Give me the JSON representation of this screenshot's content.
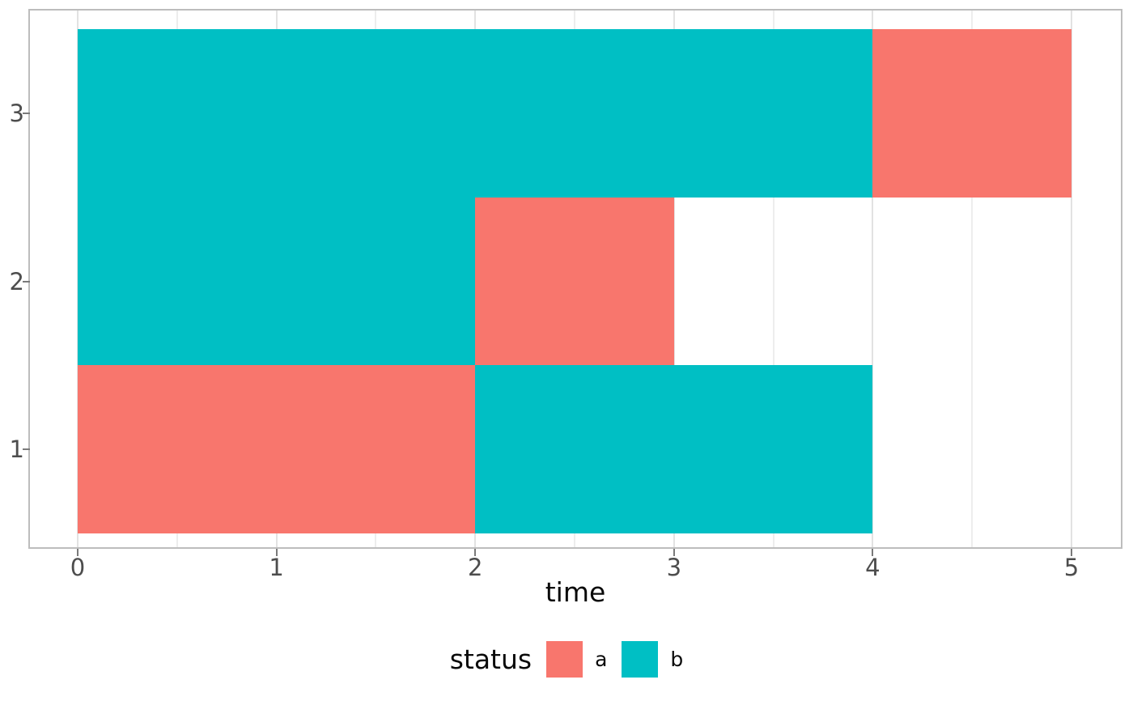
{
  "chart_data": {
    "type": "bar",
    "orientation": "horizontal",
    "title": "",
    "xlabel": "time",
    "ylabel": "",
    "xlim": [
      -0.25,
      5.25
    ],
    "ylim": [
      0.35,
      3.65
    ],
    "x_ticks": [
      0,
      1,
      2,
      3,
      4,
      5
    ],
    "x_tick_labels": [
      "0",
      "1",
      "2",
      "3",
      "4",
      "5"
    ],
    "y_ticks": [
      3,
      2,
      1
    ],
    "y_tick_labels": [
      "3",
      "2",
      "1"
    ],
    "bar_thickness": 1.0,
    "grid": {
      "vertical_major": [
        0,
        1,
        2,
        3,
        4,
        5
      ],
      "vertical_minor": [
        0.5,
        1.5,
        2.5,
        3.5,
        4.5
      ],
      "horizontal": false
    },
    "legend": {
      "title": "status",
      "position": "bottom",
      "entries": [
        {
          "label": "a",
          "color": "#F8766D"
        },
        {
          "label": "b",
          "color": "#00BFC4"
        }
      ]
    },
    "series": [
      {
        "name": "a",
        "color": "#F8766D",
        "segments": [
          {
            "row": 1,
            "start": 0,
            "end": 2
          },
          {
            "row": 2,
            "start": 2,
            "end": 3
          },
          {
            "row": 3,
            "start": 4,
            "end": 5
          }
        ]
      },
      {
        "name": "b",
        "color": "#00BFC4",
        "segments": [
          {
            "row": 1,
            "start": 2,
            "end": 4
          },
          {
            "row": 2,
            "start": 0,
            "end": 2
          },
          {
            "row": 3,
            "start": 0,
            "end": 4
          }
        ]
      }
    ]
  }
}
